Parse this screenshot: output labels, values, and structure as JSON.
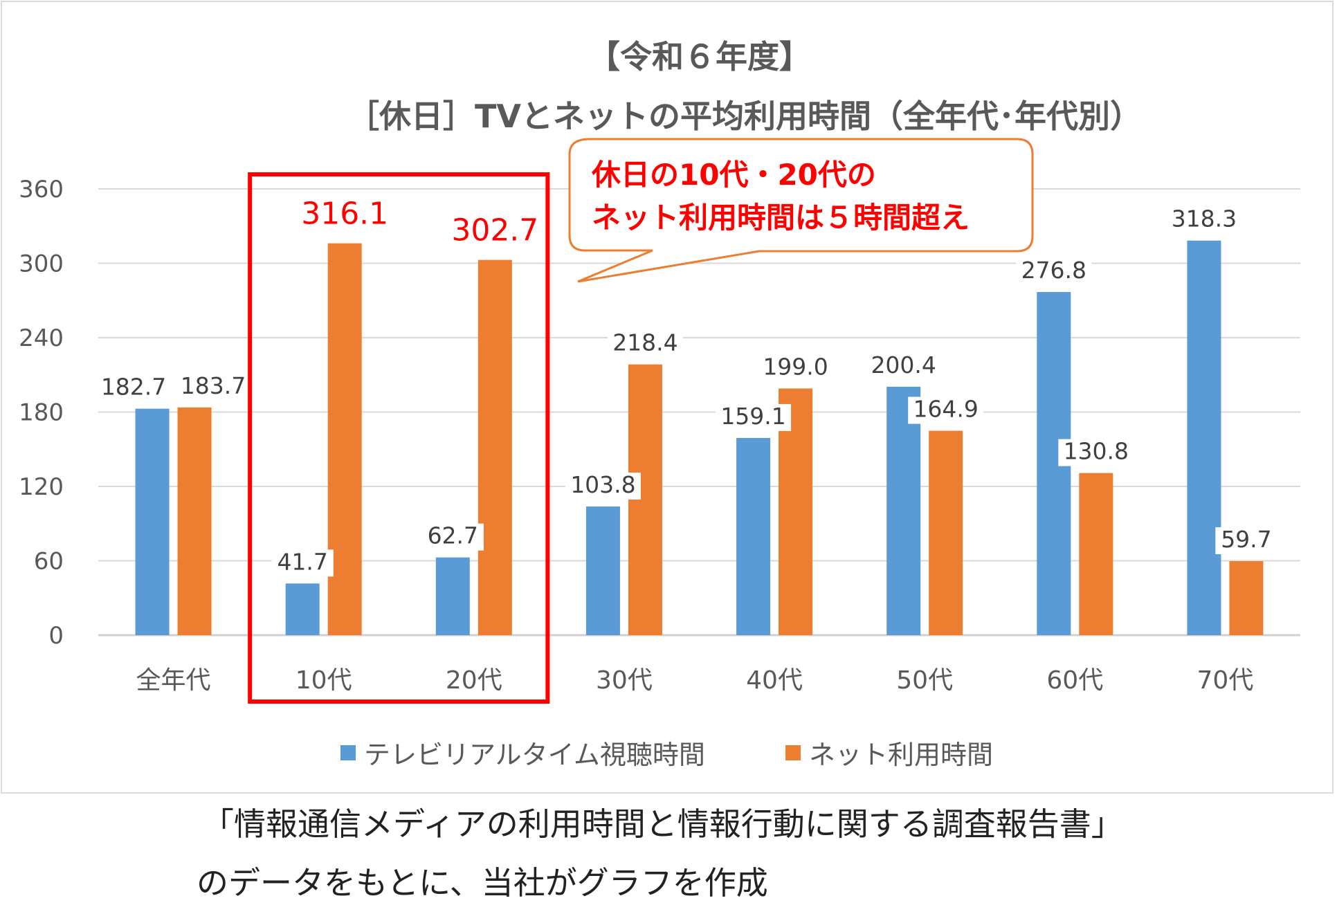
{
  "chart_data": {
    "type": "bar",
    "title": "【令和６年度】",
    "subtitle": "［休日］TVとネットの平均利用時間（全年代･年代別）",
    "categories": [
      "全年代",
      "10代",
      "20代",
      "30代",
      "40代",
      "50代",
      "60代",
      "70代"
    ],
    "series": [
      {
        "name": "テレビリアルタイム視聴時間",
        "color": "#5b9bd5",
        "values": [
          182.7,
          41.7,
          62.7,
          103.8,
          159.1,
          200.4,
          276.8,
          318.3
        ]
      },
      {
        "name": "ネット利用時間",
        "color": "#ed7d31",
        "values": [
          183.7,
          316.1,
          302.7,
          218.4,
          199.0,
          164.9,
          130.8,
          59.7
        ]
      }
    ],
    "value_labels": [
      [
        "182.7",
        "41.7",
        "62.7",
        "103.8",
        "159.1",
        "200.4",
        "276.8",
        "318.3"
      ],
      [
        "183.7",
        "316.1",
        "302.7",
        "218.4",
        "199.0",
        "164.9",
        "130.8",
        "59.7"
      ]
    ],
    "yticks": [
      "0",
      "60",
      "120",
      "180",
      "240",
      "300",
      "360"
    ],
    "ylim": [
      0,
      360
    ],
    "grid": true,
    "legend_position": "bottom",
    "highlight": {
      "categories": [
        "10代",
        "20代"
      ],
      "color": "#ff0000"
    },
    "callout": {
      "line1": "休日の10代・20代の",
      "line2": "ネット利用時間は５時間超え",
      "border_color": "#ed7d31",
      "text_color": "#ff0000"
    }
  },
  "footer": {
    "line1": "「情報通信メディアの利用時間と情報行動に関する調査報告書」",
    "line2": "のデータをもとに、当社がグラフを作成"
  }
}
